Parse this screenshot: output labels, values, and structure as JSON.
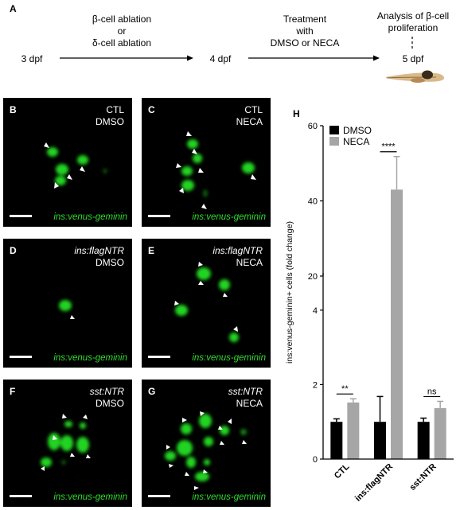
{
  "panelA": {
    "letter": "A",
    "start": "3 dpf",
    "step1": [
      "β-cell ablation",
      "or",
      "δ-cell ablation"
    ],
    "mid": "4 dpf",
    "step2": [
      "Treatment",
      "with",
      "DMSO or NECA"
    ],
    "analysis": [
      "Analysis of β-cell",
      "proliferation"
    ],
    "end": "5 dpf"
  },
  "micrographs": [
    {
      "letter": "B",
      "line1": "CTL",
      "line1_italic": false,
      "line2": "DMSO",
      "reporter": "ins:venus-geminin"
    },
    {
      "letter": "C",
      "line1": "CTL",
      "line1_italic": false,
      "line2": "NECA",
      "reporter": "ins:venus-geminin"
    },
    {
      "letter": "D",
      "line1": "ins:flagNTR",
      "line1_italic": true,
      "line2": "DMSO",
      "reporter": "ins:venus-geminin"
    },
    {
      "letter": "E",
      "line1": "ins:flagNTR",
      "line1_italic": true,
      "line2": "NECA",
      "reporter": "ins:venus-geminin"
    },
    {
      "letter": "F",
      "line1": "sst:NTR",
      "line1_italic": true,
      "line2": "DMSO",
      "reporter": "ins:venus-geminin"
    },
    {
      "letter": "G",
      "line1": "sst:NTR",
      "line1_italic": true,
      "line2": "NECA",
      "reporter": "ins:venus-geminin"
    }
  ],
  "chart_data": {
    "type": "bar",
    "panel_letter": "H",
    "categories": [
      "CTL",
      "ins:flagNTR",
      "sst:NTR"
    ],
    "series": [
      {
        "name": "DMSO",
        "color": "#000000",
        "values": [
          1.0,
          1.0,
          1.0
        ],
        "errors": [
          0.08,
          0.68,
          0.1
        ]
      },
      {
        "name": "NECA",
        "color": "#a6a6a6",
        "values": [
          1.52,
          43.0,
          1.37
        ],
        "errors": [
          0.1,
          8.8,
          0.18
        ]
      }
    ],
    "ylabel": "ins:venus-geminin+ cells (fold change)",
    "y_axis_break": {
      "lower_range": [
        0,
        5
      ],
      "upper_range": [
        20,
        60
      ]
    },
    "lower_ticks": [
      0,
      2,
      4
    ],
    "upper_ticks": [
      20,
      40,
      60
    ],
    "significance": [
      "**",
      "****",
      "ns"
    ],
    "legend_position": "top-left",
    "grid": false
  }
}
